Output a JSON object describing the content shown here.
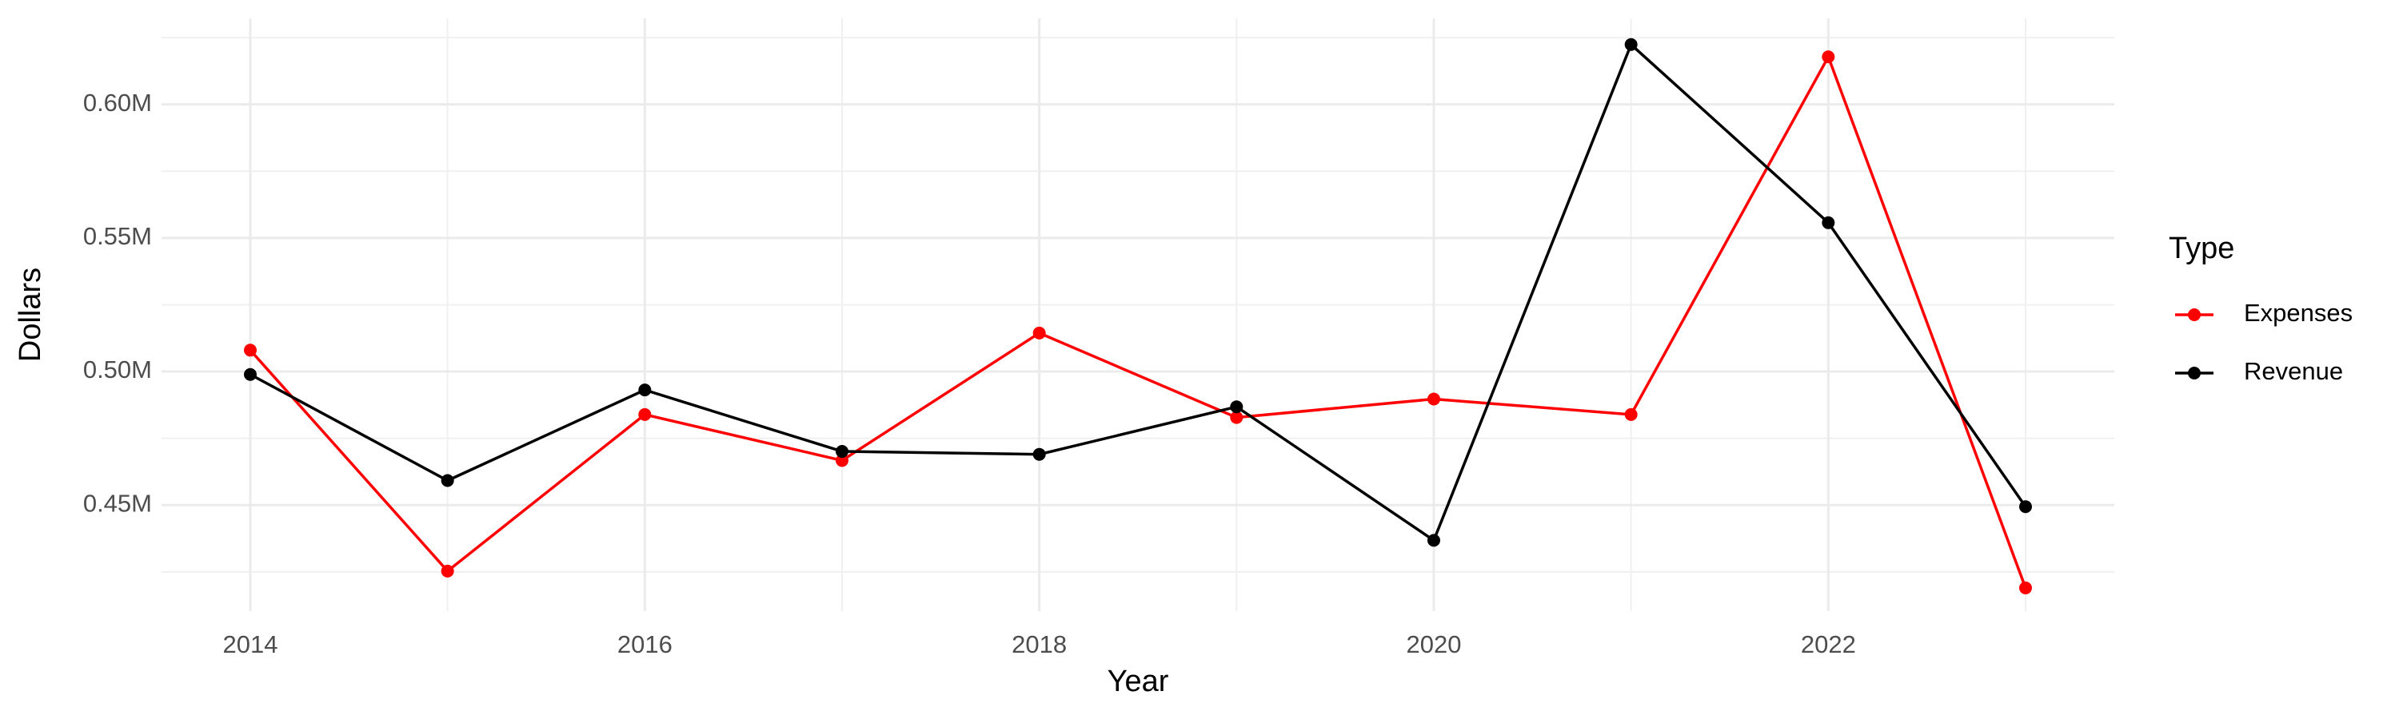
{
  "chart_data": {
    "type": "line",
    "x_label": "Year",
    "y_label": "Dollars",
    "legend_title": "Type",
    "legend_position": "right",
    "x": [
      2014,
      2015,
      2016,
      2017,
      2018,
      2019,
      2020,
      2021,
      2022,
      2023
    ],
    "series": [
      {
        "name": "Expenses",
        "color": "#ff0000",
        "values": [
          508000,
          425300,
          483900,
          466700,
          514400,
          482800,
          489700,
          483900,
          617800,
          419000
        ]
      },
      {
        "name": "Revenue",
        "color": "#000000",
        "values": [
          498900,
          459200,
          493100,
          470100,
          469000,
          486800,
          436800,
          622400,
          555700,
          449400
        ]
      }
    ],
    "xlim": [
      2013.55,
      2023.45
    ],
    "xticks": [
      2014,
      2016,
      2018,
      2020,
      2022
    ],
    "x_minor_grid": [
      2015,
      2017,
      2019,
      2021,
      2023
    ],
    "ylim": [
      410300,
      632200
    ],
    "yticks": [
      {
        "value": 450000,
        "label": "0.45M"
      },
      {
        "value": 500000,
        "label": "0.50M"
      },
      {
        "value": 550000,
        "label": "0.55M"
      },
      {
        "value": 600000,
        "label": "0.60M"
      }
    ],
    "y_minor_grid": [
      425000,
      475000,
      525000,
      575000,
      625000
    ],
    "grid": true
  }
}
